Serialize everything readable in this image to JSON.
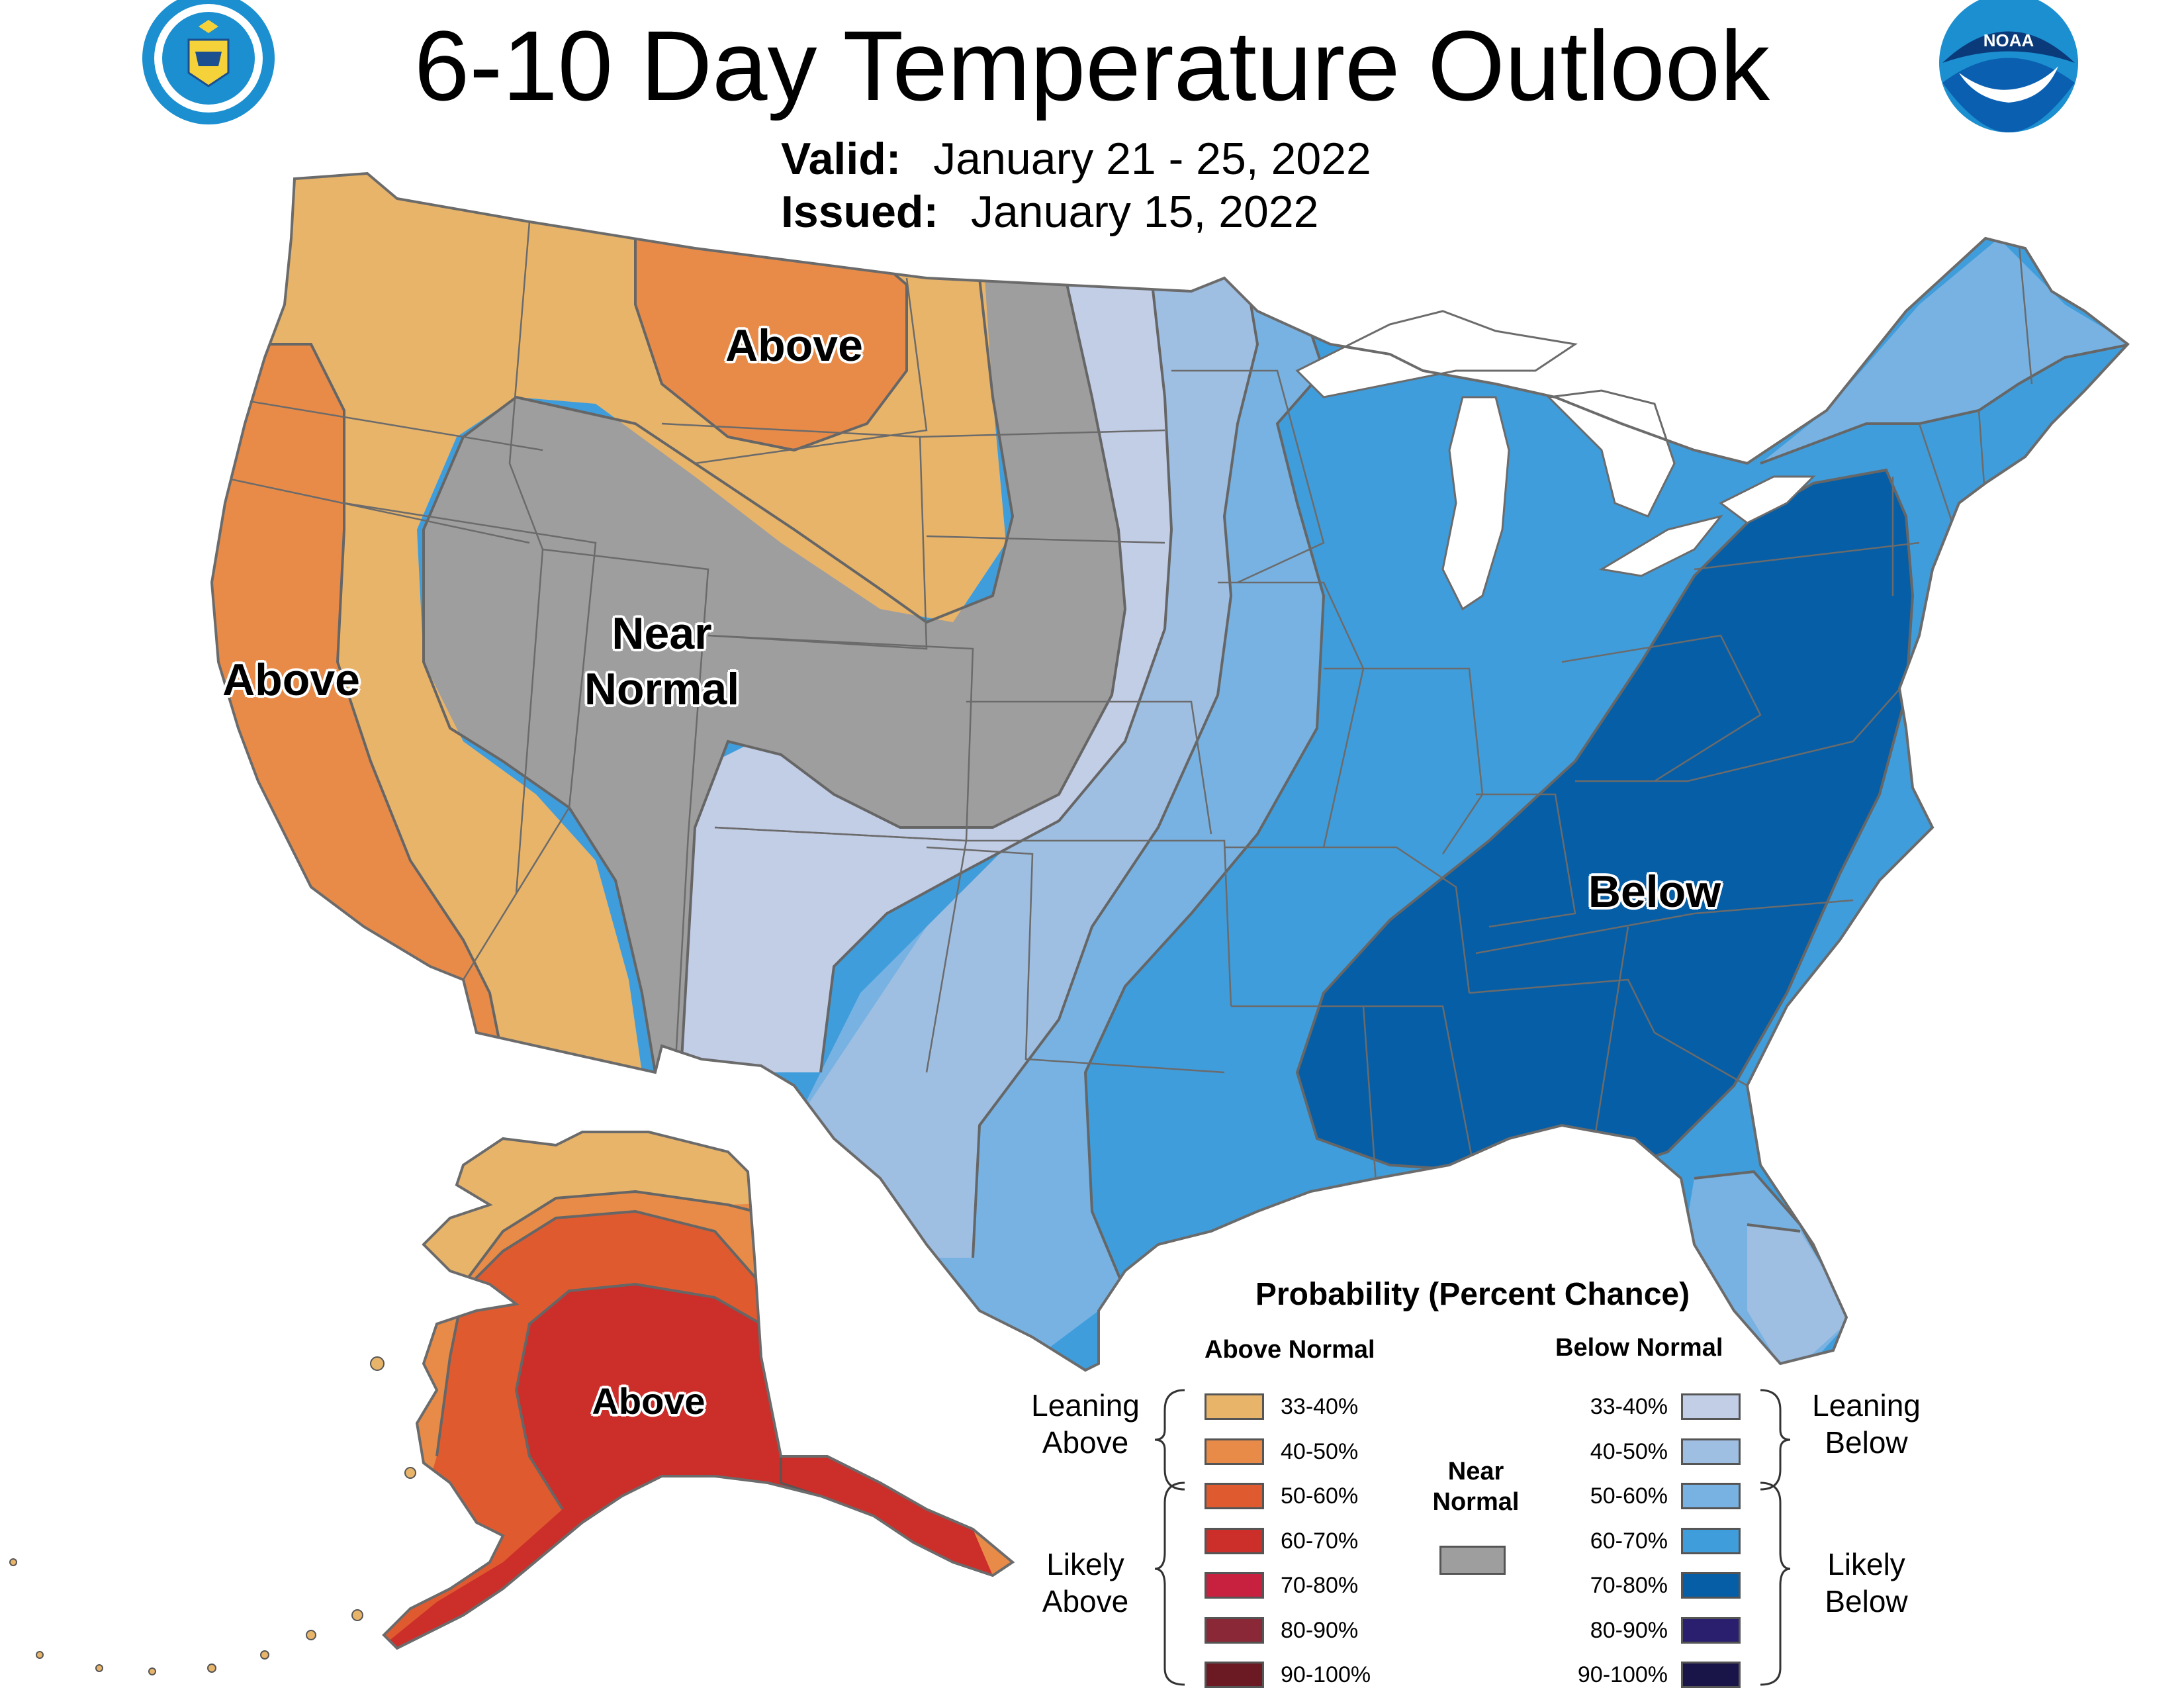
{
  "header": {
    "title": "6-10 Day Temperature Outlook",
    "valid_label": "Valid:",
    "valid_value": "January 21 - 25, 2022",
    "issued_label": "Issued:",
    "issued_value": "January 15, 2022"
  },
  "logos": {
    "commerce_seal_text": "DEPARTMENT OF COMMERCE · UNITED STATES OF AMERICA",
    "noaa_text": "NOAA"
  },
  "map_labels": {
    "above_northern_plains": "Above",
    "near_normal_line1": "Near",
    "near_normal_line2": "Normal",
    "above_west_coast": "Above",
    "below_southeast": "Below",
    "above_alaska": "Above"
  },
  "legend": {
    "title": "Probability (Percent Chance)",
    "above_header": "Above Normal",
    "below_header": "Below Normal",
    "near_normal_line1": "Near",
    "near_normal_line2": "Normal",
    "leaning_above_line1": "Leaning",
    "leaning_above_line2": "Above",
    "likely_above_line1": "Likely",
    "likely_above_line2": "Above",
    "leaning_below_line1": "Leaning",
    "leaning_below_line2": "Below",
    "likely_below_line1": "Likely",
    "likely_below_line2": "Below",
    "above_categories": [
      {
        "range": "33-40%",
        "color": "#e8b46a"
      },
      {
        "range": "40-50%",
        "color": "#e88b48"
      },
      {
        "range": "50-60%",
        "color": "#e05a30"
      },
      {
        "range": "60-70%",
        "color": "#cc2e2a"
      },
      {
        "range": "70-80%",
        "color": "#c8203f"
      },
      {
        "range": "80-90%",
        "color": "#8b2838"
      },
      {
        "range": "90-100%",
        "color": "#6b1a24"
      }
    ],
    "below_categories": [
      {
        "range": "33-40%",
        "color": "#c2cde6"
      },
      {
        "range": "40-50%",
        "color": "#9ebee2"
      },
      {
        "range": "50-60%",
        "color": "#77b2e2"
      },
      {
        "range": "60-70%",
        "color": "#3f9ddc"
      },
      {
        "range": "70-80%",
        "color": "#055ea6"
      },
      {
        "range": "80-90%",
        "color": "#2a1f6e"
      },
      {
        "range": "90-100%",
        "color": "#1a1548"
      }
    ],
    "near_normal_color": "#9e9e9e"
  },
  "colors": {
    "state_border": "#6b6b6b",
    "contour": "#666666",
    "water": "#ffffff"
  }
}
